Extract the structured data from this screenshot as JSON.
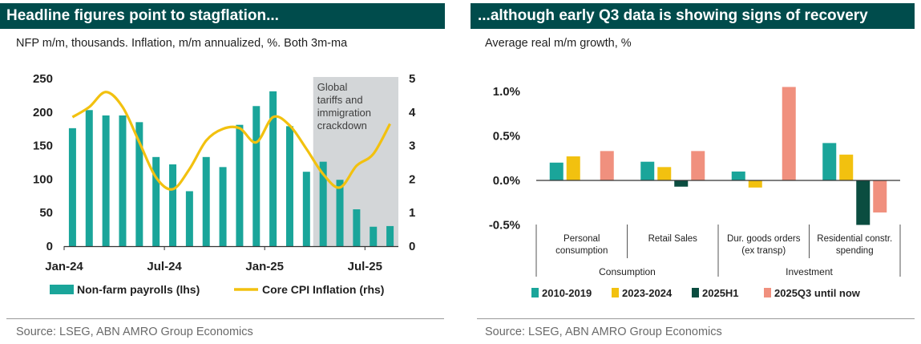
{
  "left": {
    "title": "Headline figures point to stagflation...",
    "subtitle": "NFP m/m, thousands. Inflation, m/m annualized, %. Both 3m-ma",
    "source": "Source: LSEG, ABN AMRO Group Economics"
  },
  "right": {
    "title": "...although early Q3 data is showing signs of recovery",
    "subtitle": "Average real m/m growth, %",
    "source": "Source: LSEG, ABN AMRO Group Economics"
  },
  "chart_data": [
    {
      "type": "bar",
      "title": "Headline figures point to stagflation...",
      "subtitle": "NFP m/m, thousands. Inflation, m/m annualized, %. Both 3m-ma",
      "x_tick_labels": [
        "Jan-24",
        "Jul-24",
        "Jan-25",
        "Jul-25"
      ],
      "categories": [
        "Jan-24",
        "Feb-24",
        "Mar-24",
        "Apr-24",
        "May-24",
        "Jun-24",
        "Jul-24",
        "Aug-24",
        "Sep-24",
        "Oct-24",
        "Nov-24",
        "Dec-24",
        "Jan-25",
        "Feb-25",
        "Mar-25",
        "Apr-25",
        "May-25",
        "Jun-25",
        "Jul-25",
        "Aug-25"
      ],
      "y_left_ticks": [
        "250",
        "200",
        "150",
        "100",
        "50",
        "0"
      ],
      "y_right_ticks": [
        "5",
        "4",
        "3",
        "2",
        "1",
        "0"
      ],
      "ylim_left": [
        0,
        250
      ],
      "ylim_right": [
        0,
        5
      ],
      "series": [
        {
          "name": "Non-farm payrolls (lhs)",
          "type": "bar",
          "axis": "left",
          "color": "#1aa59a",
          "values": [
            176,
            203,
            195,
            195,
            185,
            133,
            122,
            82,
            133,
            118,
            181,
            209,
            231,
            179,
            111,
            126,
            99,
            55,
            29,
            30
          ]
        },
        {
          "name": "Core CPI Inflation (rhs)",
          "type": "line",
          "axis": "right",
          "color": "#f2c10f",
          "values": [
            3.85,
            4.15,
            4.6,
            4.15,
            3.1,
            2.05,
            1.7,
            2.3,
            3.15,
            3.5,
            3.52,
            3.1,
            3.85,
            3.6,
            2.9,
            2.15,
            1.75,
            2.4,
            2.75,
            3.65
          ]
        }
      ],
      "annotation": {
        "text_lines": [
          "Global",
          "tariffs and",
          "immigration",
          "crackdown"
        ],
        "shaded_from": "Apr-25",
        "shaded_to": "Aug-25",
        "color": "#d3d6d8"
      },
      "grid": false,
      "legend_position": "bottom"
    },
    {
      "type": "bar",
      "title": "...although early Q3 data is showing signs of recovery",
      "subtitle": "Average real m/m growth, %",
      "categories": [
        "Personal consumption",
        "Retail Sales",
        "Dur. goods orders (ex transp)",
        "Residential constr. spending"
      ],
      "category_label_lines": [
        [
          "Personal",
          "consumption"
        ],
        [
          "Retail Sales"
        ],
        [
          "Dur. goods orders",
          "(ex transp)"
        ],
        [
          "Residential constr.",
          "spending"
        ]
      ],
      "groups": [
        {
          "label": "Consumption",
          "categories": 2
        },
        {
          "label": "Investment",
          "categories": 2
        }
      ],
      "y_ticks": [
        "1.0%",
        "0.5%",
        "0.0%",
        "-0.5%"
      ],
      "ylim": [
        -0.5,
        1.0
      ],
      "series": [
        {
          "name": "2010-2019",
          "color": "#1aa59a",
          "values": [
            0.2,
            0.21,
            0.1,
            0.42
          ]
        },
        {
          "name": "2023-2024",
          "color": "#f2c10f",
          "values": [
            0.27,
            0.15,
            -0.08,
            0.29
          ]
        },
        {
          "name": "2025H1",
          "color": "#0b4d40",
          "values": [
            0.0,
            -0.07,
            0.0,
            -0.5
          ]
        },
        {
          "name": "2025Q3 until now",
          "color": "#f0907e",
          "values": [
            0.33,
            0.33,
            1.05,
            -0.36
          ]
        }
      ],
      "grid": false,
      "legend_position": "bottom"
    }
  ]
}
